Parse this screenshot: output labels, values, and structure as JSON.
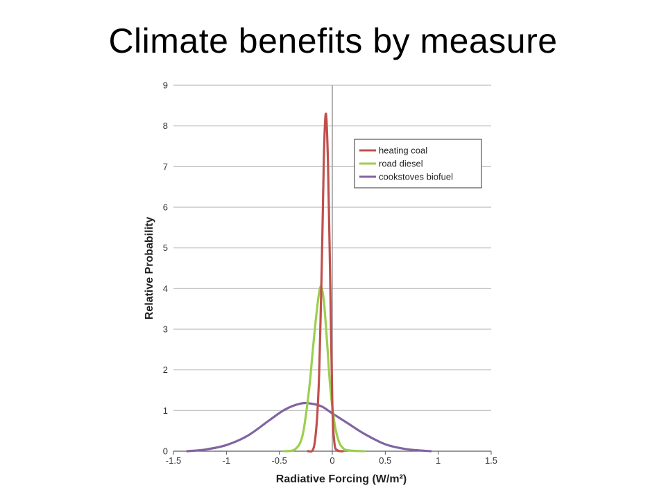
{
  "slide": {
    "title": "Climate benefits by measure"
  },
  "chart_data": {
    "type": "line",
    "title": "",
    "xlabel": "Radiative Forcing (W/m²)",
    "ylabel": "Relative Probability",
    "xlim": [
      -1.5,
      1.5
    ],
    "ylim": [
      0,
      9
    ],
    "xticks": [
      "-1.5",
      "-1",
      "-0.5",
      "0",
      "0.5",
      "1",
      "1.5"
    ],
    "yticks": [
      "0",
      "1",
      "2",
      "3",
      "4",
      "5",
      "6",
      "7",
      "8",
      "9"
    ],
    "grid": "horizontal",
    "reference_line_x": 0,
    "legend_position": "top-right",
    "series": [
      {
        "name": "heating coal",
        "color": "#c0504d",
        "x": [
          -0.23,
          -0.17,
          -0.13,
          -0.1,
          -0.08,
          -0.06,
          -0.04,
          -0.02,
          0.0,
          0.02,
          0.05,
          0.1
        ],
        "y": [
          0,
          0.15,
          1.5,
          4.5,
          7.2,
          8.3,
          7.0,
          4.2,
          1.2,
          0.2,
          0.02,
          0
        ]
      },
      {
        "name": "road diesel",
        "color": "#9bcf4e",
        "x": [
          -0.45,
          -0.35,
          -0.28,
          -0.22,
          -0.18,
          -0.14,
          -0.11,
          -0.08,
          -0.05,
          -0.02,
          0.02,
          0.06,
          0.1,
          0.15,
          0.3
        ],
        "y": [
          0,
          0.05,
          0.4,
          1.5,
          2.6,
          3.6,
          4.05,
          3.7,
          2.7,
          1.6,
          0.7,
          0.25,
          0.08,
          0.02,
          0
        ]
      },
      {
        "name": "cookstoves biofuel",
        "color": "#8064a2",
        "x": [
          -1.37,
          -1.2,
          -1.0,
          -0.8,
          -0.6,
          -0.45,
          -0.3,
          -0.2,
          -0.1,
          0.0,
          0.15,
          0.3,
          0.5,
          0.7,
          0.93
        ],
        "y": [
          0,
          0.04,
          0.15,
          0.38,
          0.75,
          1.02,
          1.17,
          1.17,
          1.1,
          0.93,
          0.68,
          0.43,
          0.17,
          0.05,
          0
        ]
      }
    ]
  }
}
